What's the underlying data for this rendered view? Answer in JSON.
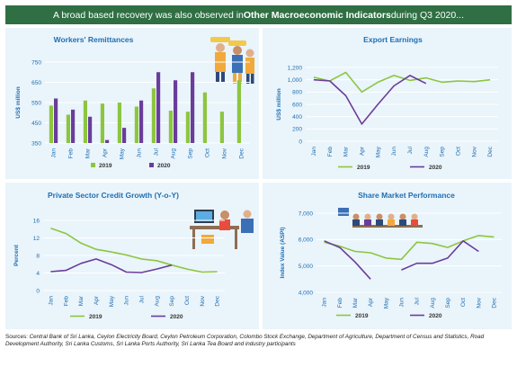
{
  "banner": {
    "pre": "A broad based recovery was also observed in ",
    "bold": "Other Macroeconomic Indicators",
    "post": " during Q3 2020..."
  },
  "months": [
    "Jan",
    "Feb",
    "Mar",
    "Apr",
    "May",
    "Jun",
    "Jul",
    "Aug",
    "Sep",
    "Oct",
    "Nov",
    "Dec"
  ],
  "colors": {
    "s2019": "#8cc63f",
    "s2020": "#6a3d9a",
    "title": "#1f6fb2",
    "panel": "#eaf4fb"
  },
  "chart_data": [
    {
      "id": "remit",
      "type": "bar",
      "title": "Workers' Remittances",
      "ylabel": "US$ million",
      "ylim": [
        350,
        750
      ],
      "yticks": [
        350,
        450,
        550,
        650,
        750
      ],
      "ytick_labels": [
        "350",
        "450",
        "550",
        "650",
        "750"
      ],
      "series": [
        {
          "name": "2019",
          "values": [
            535,
            490,
            560,
            545,
            550,
            530,
            620,
            510,
            505,
            600,
            505,
            660
          ]
        },
        {
          "name": "2020",
          "values": [
            570,
            515,
            480,
            365,
            425,
            560,
            700,
            660,
            700,
            null,
            null,
            null
          ]
        }
      ]
    },
    {
      "id": "export",
      "type": "line",
      "title": "Export Earnings",
      "ylabel": "US$ million",
      "ylim": [
        0,
        1200
      ],
      "yticks": [
        0,
        200,
        400,
        600,
        800,
        1000,
        1200
      ],
      "ytick_labels": [
        "0",
        "200",
        "400",
        "600",
        "800",
        "1,000",
        "1,200"
      ],
      "series": [
        {
          "name": "2019",
          "values": [
            1040,
            980,
            1120,
            800,
            960,
            1070,
            990,
            1030,
            960,
            980,
            970,
            1000
          ]
        },
        {
          "name": "2020",
          "values": [
            1000,
            980,
            740,
            280,
            600,
            900,
            1070,
            940,
            null,
            null,
            null,
            null
          ]
        }
      ]
    },
    {
      "id": "credit",
      "type": "line",
      "title": "Private Sector Credit Growth (Y-o-Y)",
      "ylabel": "Percent",
      "ylim": [
        0,
        16
      ],
      "yticks": [
        0,
        4,
        8,
        12,
        16
      ],
      "ytick_labels": [
        "0",
        "4",
        "8",
        "12",
        "16"
      ],
      "series": [
        {
          "name": "2019",
          "values": [
            14.2,
            13.0,
            10.8,
            9.4,
            8.8,
            8.1,
            7.2,
            6.8,
            5.8,
            4.9,
            4.2,
            4.3
          ]
        },
        {
          "name": "2020",
          "values": [
            4.3,
            4.6,
            6.2,
            7.2,
            5.9,
            4.2,
            4.1,
            4.9,
            5.8,
            null,
            null,
            null
          ]
        }
      ]
    },
    {
      "id": "share",
      "type": "line",
      "title": "Share Market Performance",
      "ylabel": "Index Value (ASPI)",
      "ylim": [
        4000,
        7000
      ],
      "yticks": [
        4000,
        5000,
        6000,
        7000
      ],
      "ytick_labels": [
        "4,000",
        "5,000",
        "6,000",
        "7,000"
      ],
      "series": [
        {
          "name": "2019",
          "values": [
            5900,
            5750,
            5550,
            5500,
            5300,
            5250,
            5900,
            5850,
            5700,
            5950,
            6150,
            6100
          ]
        },
        {
          "name": "2020",
          "values": [
            5950,
            5700,
            5150,
            4500,
            null,
            4850,
            5100,
            5100,
            5300,
            5950,
            5550,
            null
          ]
        }
      ]
    }
  ],
  "sources": {
    "label": "Sources:",
    "text": "Central Bank of Sri Lanka, Ceylon Electricity Board, Ceylon Petroleum Corporation, Colombo Stock Exchange, Department of Agriculture, Department of Census and Statistics, Road Development Authority, Sri Lanka Customs, Sri Lanka Ports Authority, Sri Lanka Tea Board and industry participants"
  }
}
